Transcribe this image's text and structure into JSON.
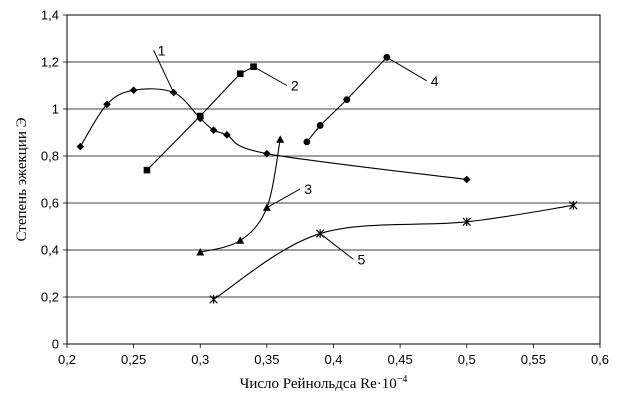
{
  "chart_data": {
    "type": "line",
    "title": "",
    "xlabel": "Число Рейнольдса Re·10",
    "xlabel_sup": "−4",
    "ylabel": "Степень эжекции Э",
    "xlim": [
      0.2,
      0.6
    ],
    "ylim": [
      0,
      1.4
    ],
    "x_ticks": [
      "0,2",
      "0,25",
      "0,3",
      "0,35",
      "0,4",
      "0,45",
      "0,5",
      "0,55",
      "0,6"
    ],
    "y_ticks": [
      "0",
      "0,2",
      "0,4",
      "0,6",
      "0,8",
      "1",
      "1,2",
      "1,4"
    ],
    "grid": "horizontal",
    "legend": "none",
    "series": [
      {
        "label": "1",
        "marker": "diamond",
        "smooth": true,
        "x": [
          0.21,
          0.23,
          0.25,
          0.28,
          0.3,
          0.31,
          0.32,
          0.35,
          0.5
        ],
        "y": [
          0.84,
          1.02,
          1.08,
          1.07,
          0.96,
          0.91,
          0.89,
          0.81,
          0.7
        ]
      },
      {
        "label": "2",
        "marker": "square",
        "smooth": false,
        "x": [
          0.26,
          0.3,
          0.33,
          0.34
        ],
        "y": [
          0.74,
          0.97,
          1.15,
          1.18
        ]
      },
      {
        "label": "3",
        "marker": "triangle",
        "smooth": true,
        "x": [
          0.3,
          0.33,
          0.35,
          0.36
        ],
        "y": [
          0.39,
          0.44,
          0.58,
          0.87
        ]
      },
      {
        "label": "4",
        "marker": "circle",
        "smooth": false,
        "x": [
          0.38,
          0.39,
          0.41,
          0.44
        ],
        "y": [
          0.86,
          0.93,
          1.04,
          1.22
        ]
      },
      {
        "label": "5",
        "marker": "asterisk",
        "smooth": true,
        "x": [
          0.31,
          0.39,
          0.5,
          0.58
        ],
        "y": [
          0.19,
          0.47,
          0.52,
          0.59
        ]
      }
    ],
    "annotations": [
      {
        "text": "1",
        "target": [
          0.28,
          1.07
        ],
        "label_at": [
          0.265,
          1.25
        ]
      },
      {
        "text": "2",
        "target": [
          0.34,
          1.18
        ],
        "label_at": [
          0.365,
          1.1
        ]
      },
      {
        "text": "3",
        "target": [
          0.35,
          0.58
        ],
        "label_at": [
          0.375,
          0.66
        ]
      },
      {
        "text": "4",
        "target": [
          0.44,
          1.22
        ],
        "label_at": [
          0.47,
          1.12
        ]
      },
      {
        "text": "5",
        "target": [
          0.39,
          0.47
        ],
        "label_at": [
          0.415,
          0.36
        ]
      }
    ]
  }
}
